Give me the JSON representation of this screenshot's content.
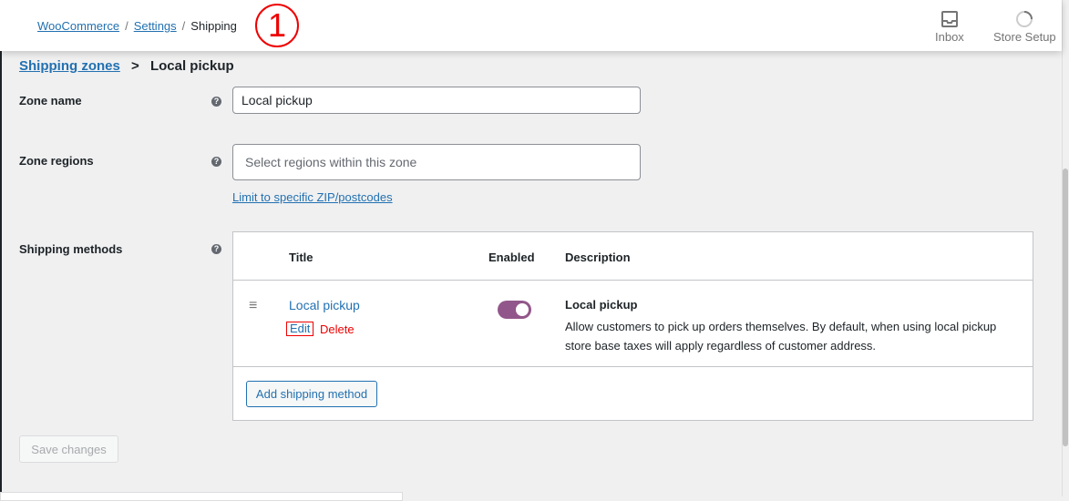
{
  "breadcrumb": {
    "items": [
      "WooCommerce",
      "Settings"
    ],
    "current": "Shipping"
  },
  "subheading": {
    "link": "Shipping zones",
    "separator": ">",
    "current": "Local pickup"
  },
  "toolbar": {
    "inbox": "Inbox",
    "store_setup": "Store Setup"
  },
  "annotation_marker": "1",
  "form": {
    "zone_name": {
      "label": "Zone name",
      "value": "Local pickup"
    },
    "zone_regions": {
      "label": "Zone regions",
      "placeholder": "Select regions within this zone",
      "limit_link": "Limit to specific ZIP/postcodes"
    },
    "shipping_methods": {
      "label": "Shipping methods"
    }
  },
  "table": {
    "headers": {
      "title": "Title",
      "enabled": "Enabled",
      "description": "Description"
    },
    "rows": [
      {
        "title": "Local pickup",
        "edit": "Edit",
        "delete": "Delete",
        "enabled": true,
        "desc_title": "Local pickup",
        "desc": "Allow customers to pick up orders themselves. By default, when using local pickup store base taxes will apply regardless of customer address."
      }
    ],
    "add_button": "Add shipping method"
  },
  "save_button": "Save changes",
  "colors": {
    "accent": "#2271b1",
    "toggle": "#92578a",
    "delete": "#e00000"
  }
}
